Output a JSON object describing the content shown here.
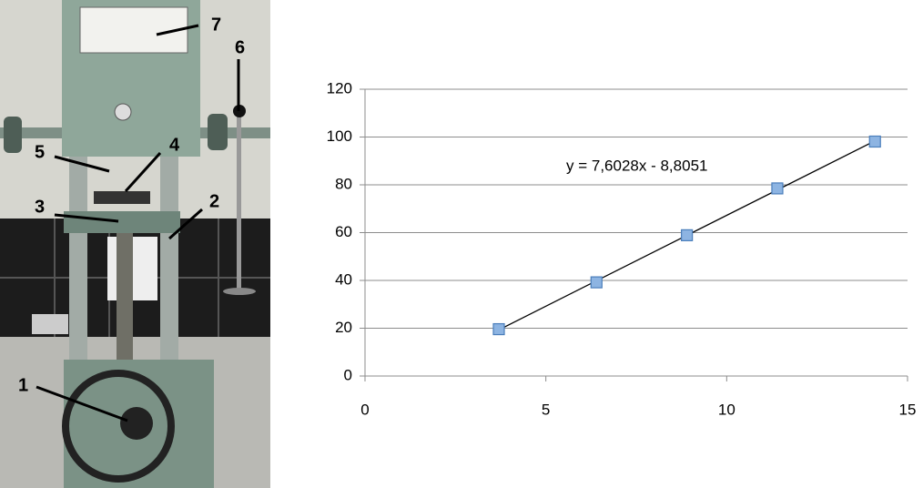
{
  "photo": {
    "labels": [
      "7",
      "6",
      "5",
      "4",
      "3",
      "2",
      "1"
    ]
  },
  "chart_data": {
    "type": "scatter",
    "x": [
      3.7,
      6.4,
      8.9,
      11.4,
      14.1
    ],
    "series": [
      {
        "color": "#8db4e2",
        "values": [
          19.6,
          39.2,
          58.9,
          78.5,
          98.1
        ]
      }
    ],
    "trendline": {
      "label": "y = 7,6028x - 8,8051",
      "slope": 7.6028,
      "intercept": -8.8051
    },
    "xlim": [
      0,
      15
    ],
    "xticks": [
      0,
      5,
      10,
      15
    ],
    "ylim": [
      0,
      120
    ],
    "yticks": [
      0,
      20,
      40,
      60,
      80,
      100,
      120
    ],
    "grid": true
  }
}
